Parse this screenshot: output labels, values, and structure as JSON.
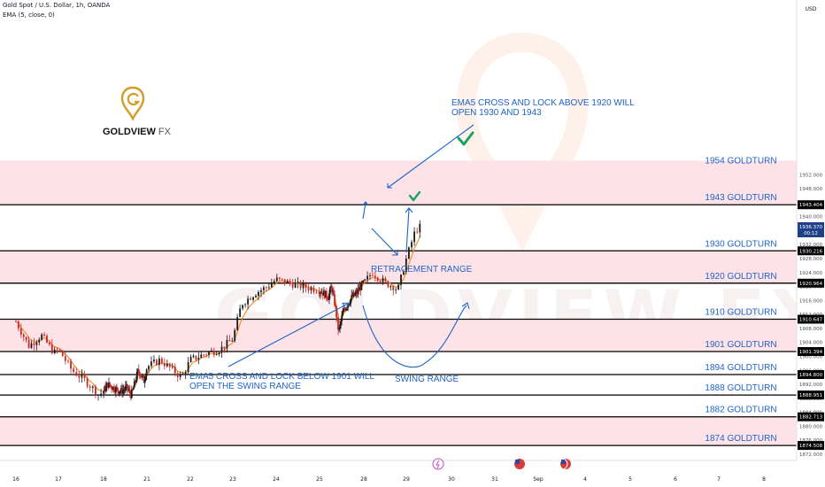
{
  "header": {
    "symbol": "Gold Spot / U.S. Dollar, 1h, OANDA",
    "indicator": "EMA (5, close, 0)"
  },
  "currency": "USD",
  "logo": {
    "name": "GOLDVIEW",
    "suffix": "FX",
    "watermark": "GOLDVIEW FX"
  },
  "colors": {
    "zone": "#fde2e8",
    "level_line": "#000000",
    "label_blue": "#1e63c8",
    "up_candle": "#1a1a1a",
    "down_candle": "#c62828",
    "ema": "#f28a1a",
    "check": "#1aa260",
    "price_tag": "#1e3f8a",
    "logo_gold": "#d69a26"
  },
  "chart_data": {
    "type": "candlestick",
    "title": "Gold Spot / U.S. Dollar, 1h, OANDA",
    "indicator": "EMA (5, close, 0)",
    "ylabel": "USD",
    "ylim": [
      1870,
      1956
    ],
    "x_ticks": [
      "16",
      "17",
      "18",
      "21",
      "22",
      "23",
      "24",
      "25",
      "28",
      "29",
      "30",
      "31",
      "Sep",
      "4",
      "5",
      "6",
      "7",
      "8"
    ],
    "y_ticks": [
      1872,
      1876,
      1880,
      1884,
      1888,
      1892,
      1896,
      1900,
      1904,
      1908,
      1912,
      1916,
      1920,
      1924,
      1928,
      1932,
      1936,
      1940,
      1944,
      1948,
      1952
    ],
    "levels": [
      {
        "label": "1954 GOLDTURN",
        "price": 1954
      },
      {
        "label": "1943 GOLDTURN",
        "price": 1943.404,
        "tag": "1943.404"
      },
      {
        "label": "1930 GOLDTURN",
        "price": 1930.216,
        "tag": "1930.216"
      },
      {
        "label": "1920 GOLDTURN",
        "price": 1920.964,
        "tag": "1920.964"
      },
      {
        "label": "1910 GOLDTURN",
        "price": 1910.647,
        "tag": "1910.647"
      },
      {
        "label": "1901 GOLDTURN",
        "price": 1901.394,
        "tag": "1901.394"
      },
      {
        "label": "1894 GOLDTURN",
        "price": 1894.8,
        "tag": "1894.800"
      },
      {
        "label": "1888 GOLDTURN",
        "price": 1888.951,
        "tag": "1888.951"
      },
      {
        "label": "1882 GOLDTURN",
        "price": 1882.713,
        "tag": "1882.713"
      },
      {
        "label": "1874 GOLDTURN",
        "price": 1874.508,
        "tag": "1874.508"
      }
    ],
    "zones": [
      [
        1943.404,
        1956
      ],
      [
        1920.964,
        1930.216
      ],
      [
        1901.394,
        1910.647
      ],
      [
        1874.508,
        1882.713
      ]
    ],
    "current_price": {
      "value": "1936.370",
      "countdown": "00:12",
      "price": 1936.37
    },
    "price_path": [
      [
        16.0,
        1910
      ],
      [
        16.3,
        1903
      ],
      [
        16.6,
        1906
      ],
      [
        16.9,
        1901
      ],
      [
        17.0,
        1902
      ],
      [
        17.3,
        1896
      ],
      [
        17.6,
        1893
      ],
      [
        17.9,
        1889
      ],
      [
        18.0,
        1890
      ],
      [
        18.3,
        1892
      ],
      [
        18.7,
        1891
      ],
      [
        19.2,
        1890
      ],
      [
        19.6,
        1891
      ],
      [
        19.9,
        1889
      ],
      [
        20.0,
        1890
      ],
      [
        20.4,
        1896
      ],
      [
        20.8,
        1893
      ],
      [
        21.0,
        1897
      ],
      [
        21.3,
        1899
      ],
      [
        21.6,
        1896
      ],
      [
        21.8,
        1894
      ],
      [
        22.0,
        1899
      ],
      [
        22.4,
        1901
      ],
      [
        22.7,
        1902
      ],
      [
        23.0,
        1905
      ],
      [
        23.2,
        1915
      ],
      [
        23.5,
        1918
      ],
      [
        23.8,
        1920
      ],
      [
        24.0,
        1922
      ],
      [
        24.3,
        1921
      ],
      [
        24.6,
        1920
      ],
      [
        25.0,
        1919
      ],
      [
        25.3,
        1918
      ],
      [
        25.6,
        1917
      ],
      [
        25.8,
        1920
      ],
      [
        26.0,
        1916
      ],
      [
        26.3,
        1907
      ],
      [
        26.6,
        1913
      ],
      [
        26.9,
        1915
      ],
      [
        27.2,
        1917
      ],
      [
        27.5,
        1918
      ],
      [
        27.8,
        1920
      ],
      [
        28.0,
        1921
      ],
      [
        28.2,
        1924
      ],
      [
        28.5,
        1921
      ],
      [
        28.7,
        1920
      ],
      [
        28.8,
        1919
      ],
      [
        29.0,
        1928
      ],
      [
        29.2,
        1936
      ],
      [
        29.3,
        1937
      ]
    ],
    "annotations": [
      {
        "text": "EMA5 CROSS AND LOCK ABOVE 1920 WILL\nOPEN 1930 AND 1943"
      },
      {
        "text": "RETRACEMENT RANGE"
      },
      {
        "text": "EMA5 CROSS AND LOCK BELOW 1901 WILL\nOPEN THE SWING RANGE"
      },
      {
        "text": "SWING RANGE"
      }
    ],
    "grid": false
  }
}
